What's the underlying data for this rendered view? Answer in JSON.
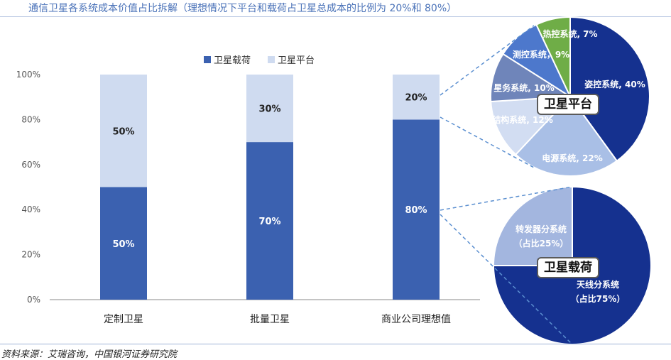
{
  "title": "通信卫星各系统成本价值占比拆解（理想情况下平台和载荷占卫星总成本的比例为 20%和 80%）",
  "source": "资料来源：艾瑞咨询，中国银河证券研究院",
  "colors": {
    "payload": "#3b61b0",
    "platform": "#cfdbf0",
    "axis": "#888888",
    "title": "#4a72b8",
    "connector": "#5b8fd0"
  },
  "chart_data": [
    {
      "type": "bar",
      "stacked": true,
      "categories": [
        "定制卫星",
        "批量卫星",
        "商业公司理想值"
      ],
      "series": [
        {
          "name": "卫星载荷",
          "values": [
            50,
            70,
            80
          ],
          "labels": [
            "50%",
            "70%",
            "80%"
          ]
        },
        {
          "name": "卫星平台",
          "values": [
            50,
            30,
            20
          ],
          "labels": [
            "50%",
            "30%",
            "20%"
          ]
        }
      ],
      "ylim": [
        0,
        100
      ],
      "yticks": [
        "0%",
        "20%",
        "40%",
        "60%",
        "80%",
        "100%"
      ],
      "legend": "top"
    },
    {
      "type": "pie",
      "title": "卫星平台",
      "slices": [
        {
          "label": "姿控系统, 40%",
          "value": 40,
          "color": "#15318f"
        },
        {
          "label": "电源系统, 22%",
          "value": 22,
          "color": "#a9bfe6"
        },
        {
          "label": "结构系统, 12%",
          "value": 12,
          "color": "#d2ddf2"
        },
        {
          "label": "星务系统, 10%",
          "value": 10,
          "color": "#6f85ba"
        },
        {
          "label": "测控系统，9%",
          "value": 9,
          "color": "#4d78cc"
        },
        {
          "label": "热控系统, 7%",
          "value": 7,
          "color": "#6fad47"
        }
      ]
    },
    {
      "type": "pie",
      "title": "卫星载荷",
      "slices": [
        {
          "label": "天线分系统",
          "sublabel": "（占比75%）",
          "value": 75,
          "color": "#15318f"
        },
        {
          "label": "转发器分系统",
          "sublabel": "（占比25%）",
          "value": 25,
          "color": "#a3b6df"
        }
      ]
    }
  ]
}
